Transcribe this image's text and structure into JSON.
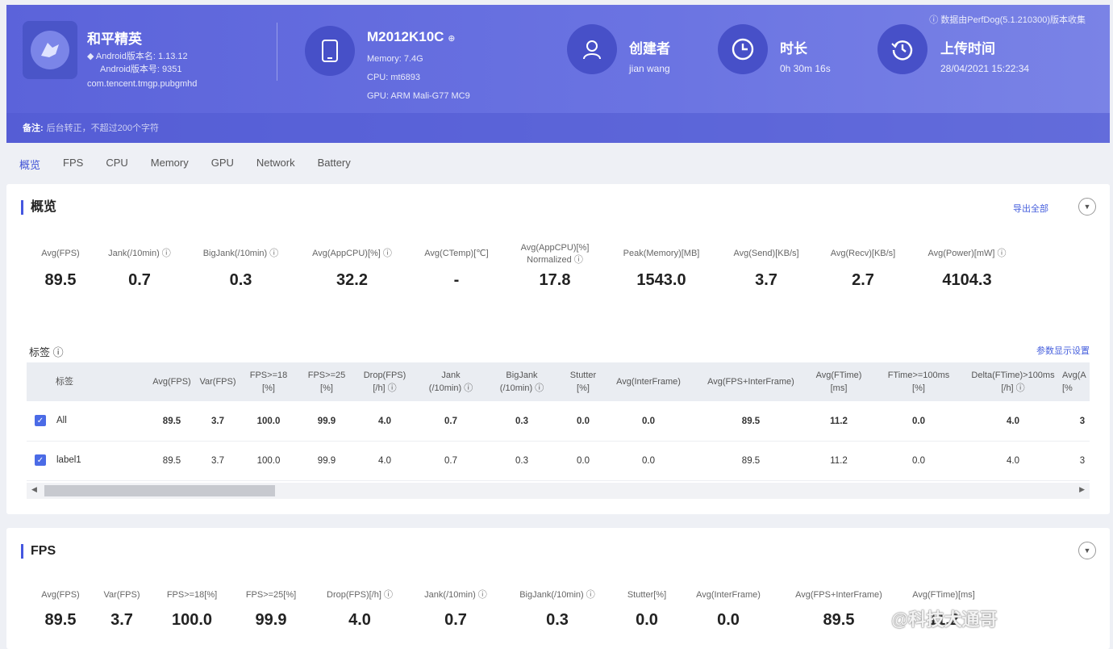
{
  "header": {
    "app_name": "和平精英",
    "app_version_name": "Android版本名: 1.13.12",
    "app_version_code": "Android版本号: 9351",
    "package": "com.tencent.tmgp.pubgmhd",
    "device_name": "M2012K10C",
    "device_memory": "Memory: 7.4G",
    "device_cpu": "CPU: mt6893",
    "device_gpu": "GPU: ARM Mali-G77 MC9",
    "creator_label": "创建者",
    "creator_value": "jian wang",
    "duration_label": "时长",
    "duration_value": "0h 30m 16s",
    "upload_label": "上传时间",
    "upload_value": "28/04/2021 15:22:34",
    "source_note": "ⓘ 数据由PerfDog(5.1.210300)版本收集",
    "remark_label": "备注:",
    "remark_text": "后台转正，不超过200个字符"
  },
  "tabs": [
    "概览",
    "FPS",
    "CPU",
    "Memory",
    "GPU",
    "Network",
    "Battery"
  ],
  "overview": {
    "title": "概览",
    "export_label": "导出全部",
    "metrics": [
      {
        "label": "Avg(FPS)",
        "label2": "",
        "value": "89.5"
      },
      {
        "label": "Jank(/10min) ⓘ",
        "label2": "",
        "value": "0.7"
      },
      {
        "label": "BigJank(/10min) ⓘ",
        "label2": "",
        "value": "0.3"
      },
      {
        "label": "Avg(AppCPU)[%] ⓘ",
        "label2": "",
        "value": "32.2"
      },
      {
        "label": "Avg(CTemp)[℃]",
        "label2": "",
        "value": "-"
      },
      {
        "label": "Avg(AppCPU)[%]",
        "label2": "Normalized ⓘ",
        "value": "17.8"
      },
      {
        "label": "Peak(Memory)[MB]",
        "label2": "",
        "value": "1543.0"
      },
      {
        "label": "Avg(Send)[KB/s]",
        "label2": "",
        "value": "3.7"
      },
      {
        "label": "Avg(Recv)[KB/s]",
        "label2": "",
        "value": "2.7"
      },
      {
        "label": "Avg(Power)[mW] ⓘ",
        "label2": "",
        "value": "4104.3"
      }
    ],
    "tag_title": "标签 ⓘ",
    "param_settings": "参数显示设置",
    "table": {
      "columns": [
        {
          "l1": "标签",
          "l2": ""
        },
        {
          "l1": "Avg(FPS)",
          "l2": ""
        },
        {
          "l1": "Var(FPS)",
          "l2": ""
        },
        {
          "l1": "FPS>=18",
          "l2": "[%]"
        },
        {
          "l1": "FPS>=25",
          "l2": "[%]"
        },
        {
          "l1": "Drop(FPS)",
          "l2": "[/h] ⓘ"
        },
        {
          "l1": "Jank",
          "l2": "(/10min) ⓘ"
        },
        {
          "l1": "BigJank",
          "l2": "(/10min) ⓘ"
        },
        {
          "l1": "Stutter",
          "l2": "[%]"
        },
        {
          "l1": "Avg(InterFrame)",
          "l2": ""
        },
        {
          "l1": "Avg(FPS+InterFrame)",
          "l2": ""
        },
        {
          "l1": "Avg(FTime)",
          "l2": "[ms]"
        },
        {
          "l1": "FTime>=100ms",
          "l2": "[%]"
        },
        {
          "l1": "Delta(FTime)>100ms",
          "l2": "[/h] ⓘ"
        },
        {
          "l1": "Avg(A",
          "l2": "[%"
        }
      ],
      "rows": [
        {
          "label": "All",
          "checked": true,
          "values": [
            "89.5",
            "3.7",
            "100.0",
            "99.9",
            "4.0",
            "0.7",
            "0.3",
            "0.0",
            "0.0",
            "89.5",
            "11.2",
            "0.0",
            "4.0",
            "3"
          ]
        },
        {
          "label": "label1",
          "checked": true,
          "values": [
            "89.5",
            "3.7",
            "100.0",
            "99.9",
            "4.0",
            "0.7",
            "0.3",
            "0.0",
            "0.0",
            "89.5",
            "11.2",
            "0.0",
            "4.0",
            "3"
          ]
        }
      ]
    }
  },
  "fps_section": {
    "title": "FPS",
    "metrics": [
      {
        "label": "Avg(FPS)",
        "value": "89.5"
      },
      {
        "label": "Var(FPS)",
        "value": "3.7"
      },
      {
        "label": "FPS>=18[%]",
        "value": "100.0"
      },
      {
        "label": "FPS>=25[%]",
        "value": "99.9"
      },
      {
        "label": "Drop(FPS)[/h] ⓘ",
        "value": "4.0"
      },
      {
        "label": "Jank(/10min) ⓘ",
        "value": "0.7"
      },
      {
        "label": "BigJank(/10min) ⓘ",
        "value": "0.3"
      },
      {
        "label": "Stutter[%]",
        "value": "0.0"
      },
      {
        "label": "Avg(InterFrame)",
        "value": "0.0"
      },
      {
        "label": "Avg(FPS+InterFrame)",
        "value": "89.5"
      },
      {
        "label": "Avg(FTime)[ms]",
        "value": "11.2"
      }
    ]
  },
  "watermark": "@科技犬通哥",
  "colors": {
    "banner": "#5b63da",
    "accent": "#4557e0",
    "link": "#4760dd"
  }
}
